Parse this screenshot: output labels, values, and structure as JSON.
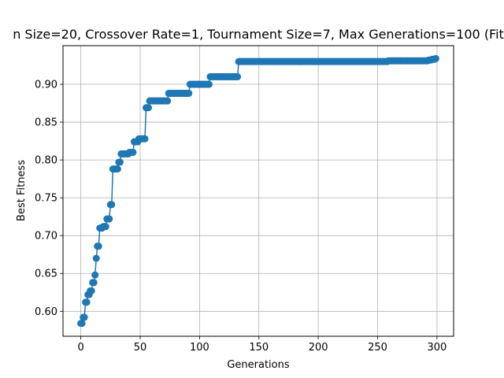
{
  "chart_data": {
    "type": "line",
    "title": "n Size=20, Crossover Rate=1, Tournament Size=7, Max Generations=100 (Fit",
    "xlabel": "Generations",
    "ylabel": "Best Fitness",
    "xlim": [
      -15,
      314
    ],
    "ylim": [
      0.567,
      0.951
    ],
    "xticks": [
      0,
      50,
      100,
      150,
      200,
      250,
      300
    ],
    "yticks": [
      0.6,
      0.65,
      0.7,
      0.75,
      0.8,
      0.85,
      0.9
    ],
    "xtick_labels": [
      "0",
      "50",
      "100",
      "150",
      "200",
      "250",
      "300"
    ],
    "ytick_labels": [
      "0.60",
      "0.65",
      "0.70",
      "0.75",
      "0.80",
      "0.85",
      "0.90"
    ],
    "grid": true,
    "legend": "none",
    "series_color": "#1f77b4",
    "marker": "circle",
    "steps": [
      [
        0,
        0.584
      ],
      [
        2,
        0.592
      ],
      [
        4,
        0.612
      ],
      [
        6,
        0.622
      ],
      [
        8,
        0.627
      ],
      [
        10,
        0.638
      ],
      [
        12,
        0.648
      ],
      [
        13,
        0.67
      ],
      [
        14,
        0.686
      ],
      [
        16,
        0.71
      ],
      [
        19,
        0.712
      ],
      [
        22,
        0.722
      ],
      [
        25,
        0.741
      ],
      [
        27,
        0.788
      ],
      [
        32,
        0.797
      ],
      [
        34,
        0.808
      ],
      [
        41,
        0.81
      ],
      [
        45,
        0.824
      ],
      [
        49,
        0.828
      ],
      [
        55,
        0.869
      ],
      [
        58,
        0.878
      ],
      [
        74,
        0.888
      ],
      [
        92,
        0.9
      ],
      [
        109,
        0.91
      ],
      [
        133,
        0.93
      ],
      [
        259,
        0.931
      ],
      [
        293,
        0.932
      ],
      [
        296,
        0.933
      ],
      [
        299,
        0.934
      ]
    ],
    "last_generation": 299
  }
}
